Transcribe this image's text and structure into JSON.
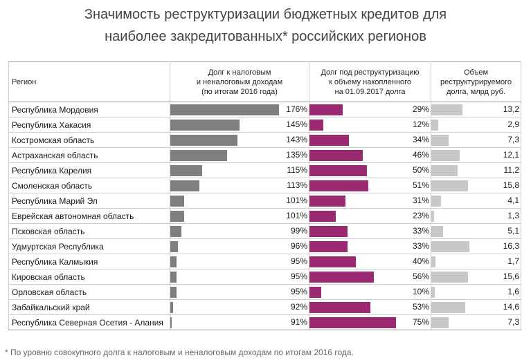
{
  "title_line1": "Значимость реструктуризации бюджетных кредитов для",
  "title_line2": "наиболее закредитованных* российских регионов",
  "headers": {
    "region": "Регион",
    "debt_income": [
      "Долг к налоговым",
      "и неналоговым доходам",
      "(по итогам 2016 года)"
    ],
    "restructuring_share": [
      "Долг под реструктуризацию",
      "к объему накопленного",
      "на 01.09.2017 долга"
    ],
    "volume": [
      "Объем",
      "реструктурируемого",
      "долга, млрд руб."
    ]
  },
  "colors": {
    "debt_income": "#7f7f7f",
    "restructuring_share": "#9b2a72",
    "volume": "#c8c8c8"
  },
  "chart_data": {
    "type": "table",
    "columns": [
      "Регион",
      "Долг к налоговым и неналоговым доходам (по итогам 2016 года)",
      "Долг под реструктуризацию к объему накопленного на 01.09.2017 долга",
      "Объем реструктурируемого долга, млрд руб."
    ],
    "rows": [
      {
        "region": "Республика Мордовия",
        "debt_income": 176,
        "restructuring_share": 29,
        "volume": 13.2,
        "debt_income_label": "176%",
        "restructuring_share_label": "29%",
        "volume_label": "13,2"
      },
      {
        "region": "Республика Хакасия",
        "debt_income": 145,
        "restructuring_share": 12,
        "volume": 2.9,
        "debt_income_label": "145%",
        "restructuring_share_label": "12%",
        "volume_label": "2,9"
      },
      {
        "region": "Костромская область",
        "debt_income": 143,
        "restructuring_share": 34,
        "volume": 7.3,
        "debt_income_label": "143%",
        "restructuring_share_label": "34%",
        "volume_label": "7,3"
      },
      {
        "region": "Астраханская область",
        "debt_income": 135,
        "restructuring_share": 46,
        "volume": 12.1,
        "debt_income_label": "135%",
        "restructuring_share_label": "46%",
        "volume_label": "12,1"
      },
      {
        "region": "Республика Карелия",
        "debt_income": 115,
        "restructuring_share": 50,
        "volume": 11.2,
        "debt_income_label": "115%",
        "restructuring_share_label": "50%",
        "volume_label": "11,2"
      },
      {
        "region": "Смоленская область",
        "debt_income": 113,
        "restructuring_share": 51,
        "volume": 15.8,
        "debt_income_label": "113%",
        "restructuring_share_label": "51%",
        "volume_label": "15,8"
      },
      {
        "region": "Республика Марий Эл",
        "debt_income": 101,
        "restructuring_share": 31,
        "volume": 4.1,
        "debt_income_label": "101%",
        "restructuring_share_label": "31%",
        "volume_label": "4,1"
      },
      {
        "region": "Еврейская автономная область",
        "debt_income": 101,
        "restructuring_share": 23,
        "volume": 1.3,
        "debt_income_label": "101%",
        "restructuring_share_label": "23%",
        "volume_label": "1,3"
      },
      {
        "region": "Псковская область",
        "debt_income": 99,
        "restructuring_share": 33,
        "volume": 5.1,
        "debt_income_label": "99%",
        "restructuring_share_label": "33%",
        "volume_label": "5,1"
      },
      {
        "region": "Удмуртская Республика",
        "debt_income": 96,
        "restructuring_share": 33,
        "volume": 16.3,
        "debt_income_label": "96%",
        "restructuring_share_label": "33%",
        "volume_label": "16,3"
      },
      {
        "region": "Республика Калмыкия",
        "debt_income": 95,
        "restructuring_share": 40,
        "volume": 1.7,
        "debt_income_label": "95%",
        "restructuring_share_label": "40%",
        "volume_label": "1,7"
      },
      {
        "region": "Кировская область",
        "debt_income": 95,
        "restructuring_share": 56,
        "volume": 15.6,
        "debt_income_label": "95%",
        "restructuring_share_label": "56%",
        "volume_label": "15,6"
      },
      {
        "region": "Орловская область",
        "debt_income": 95,
        "restructuring_share": 10,
        "volume": 1.6,
        "debt_income_label": "95%",
        "restructuring_share_label": "10%",
        "volume_label": "1,6"
      },
      {
        "region": "Забайкальский край",
        "debt_income": 92,
        "restructuring_share": 53,
        "volume": 14.6,
        "debt_income_label": "92%",
        "restructuring_share_label": "53%",
        "volume_label": "14,6"
      },
      {
        "region": "Республика Северная Осетия - Алания",
        "debt_income": 91,
        "restructuring_share": 75,
        "volume": 7.3,
        "debt_income_label": "91%",
        "restructuring_share_label": "75%",
        "volume_label": "7,3"
      }
    ]
  },
  "footnote": "* По уровню совокупного долга к налоговым и неналоговым доходам по итогам 2016 года."
}
